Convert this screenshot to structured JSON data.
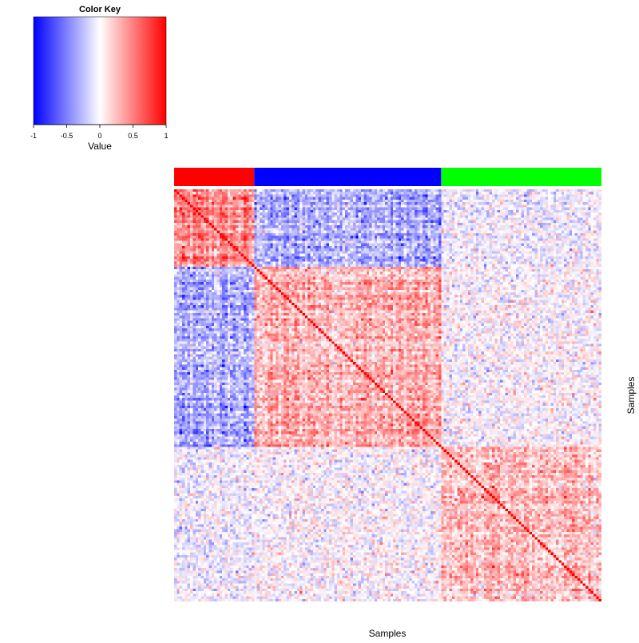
{
  "chart_data": {
    "type": "heatmap",
    "title": "",
    "xlabel": "Samples",
    "ylabel": "Samples",
    "matrix_kind": "sample-sample correlation",
    "n_samples": 160,
    "groups": [
      {
        "color": "#ff0000",
        "count": 30
      },
      {
        "color": "#0000ff",
        "count": 70
      },
      {
        "color": "#00ff00",
        "count": 60
      }
    ],
    "block_mean_correlation": [
      [
        0.4,
        -0.3,
        -0.05
      ],
      [
        -0.3,
        0.3,
        0.0
      ],
      [
        -0.05,
        0.0,
        0.25
      ]
    ],
    "diagonal_value": 1,
    "value_range": [
      -1,
      1
    ],
    "colors": {
      "low": "#0000ff",
      "mid": "#ffffff",
      "high": "#ff0000"
    },
    "color_key": {
      "title": "Color Key",
      "label": "Value",
      "ticks": [
        "-1",
        "-0.5",
        "0",
        "0.5",
        "1"
      ],
      "tick_values": [
        -1,
        -0.5,
        0,
        0.5,
        1
      ]
    }
  }
}
